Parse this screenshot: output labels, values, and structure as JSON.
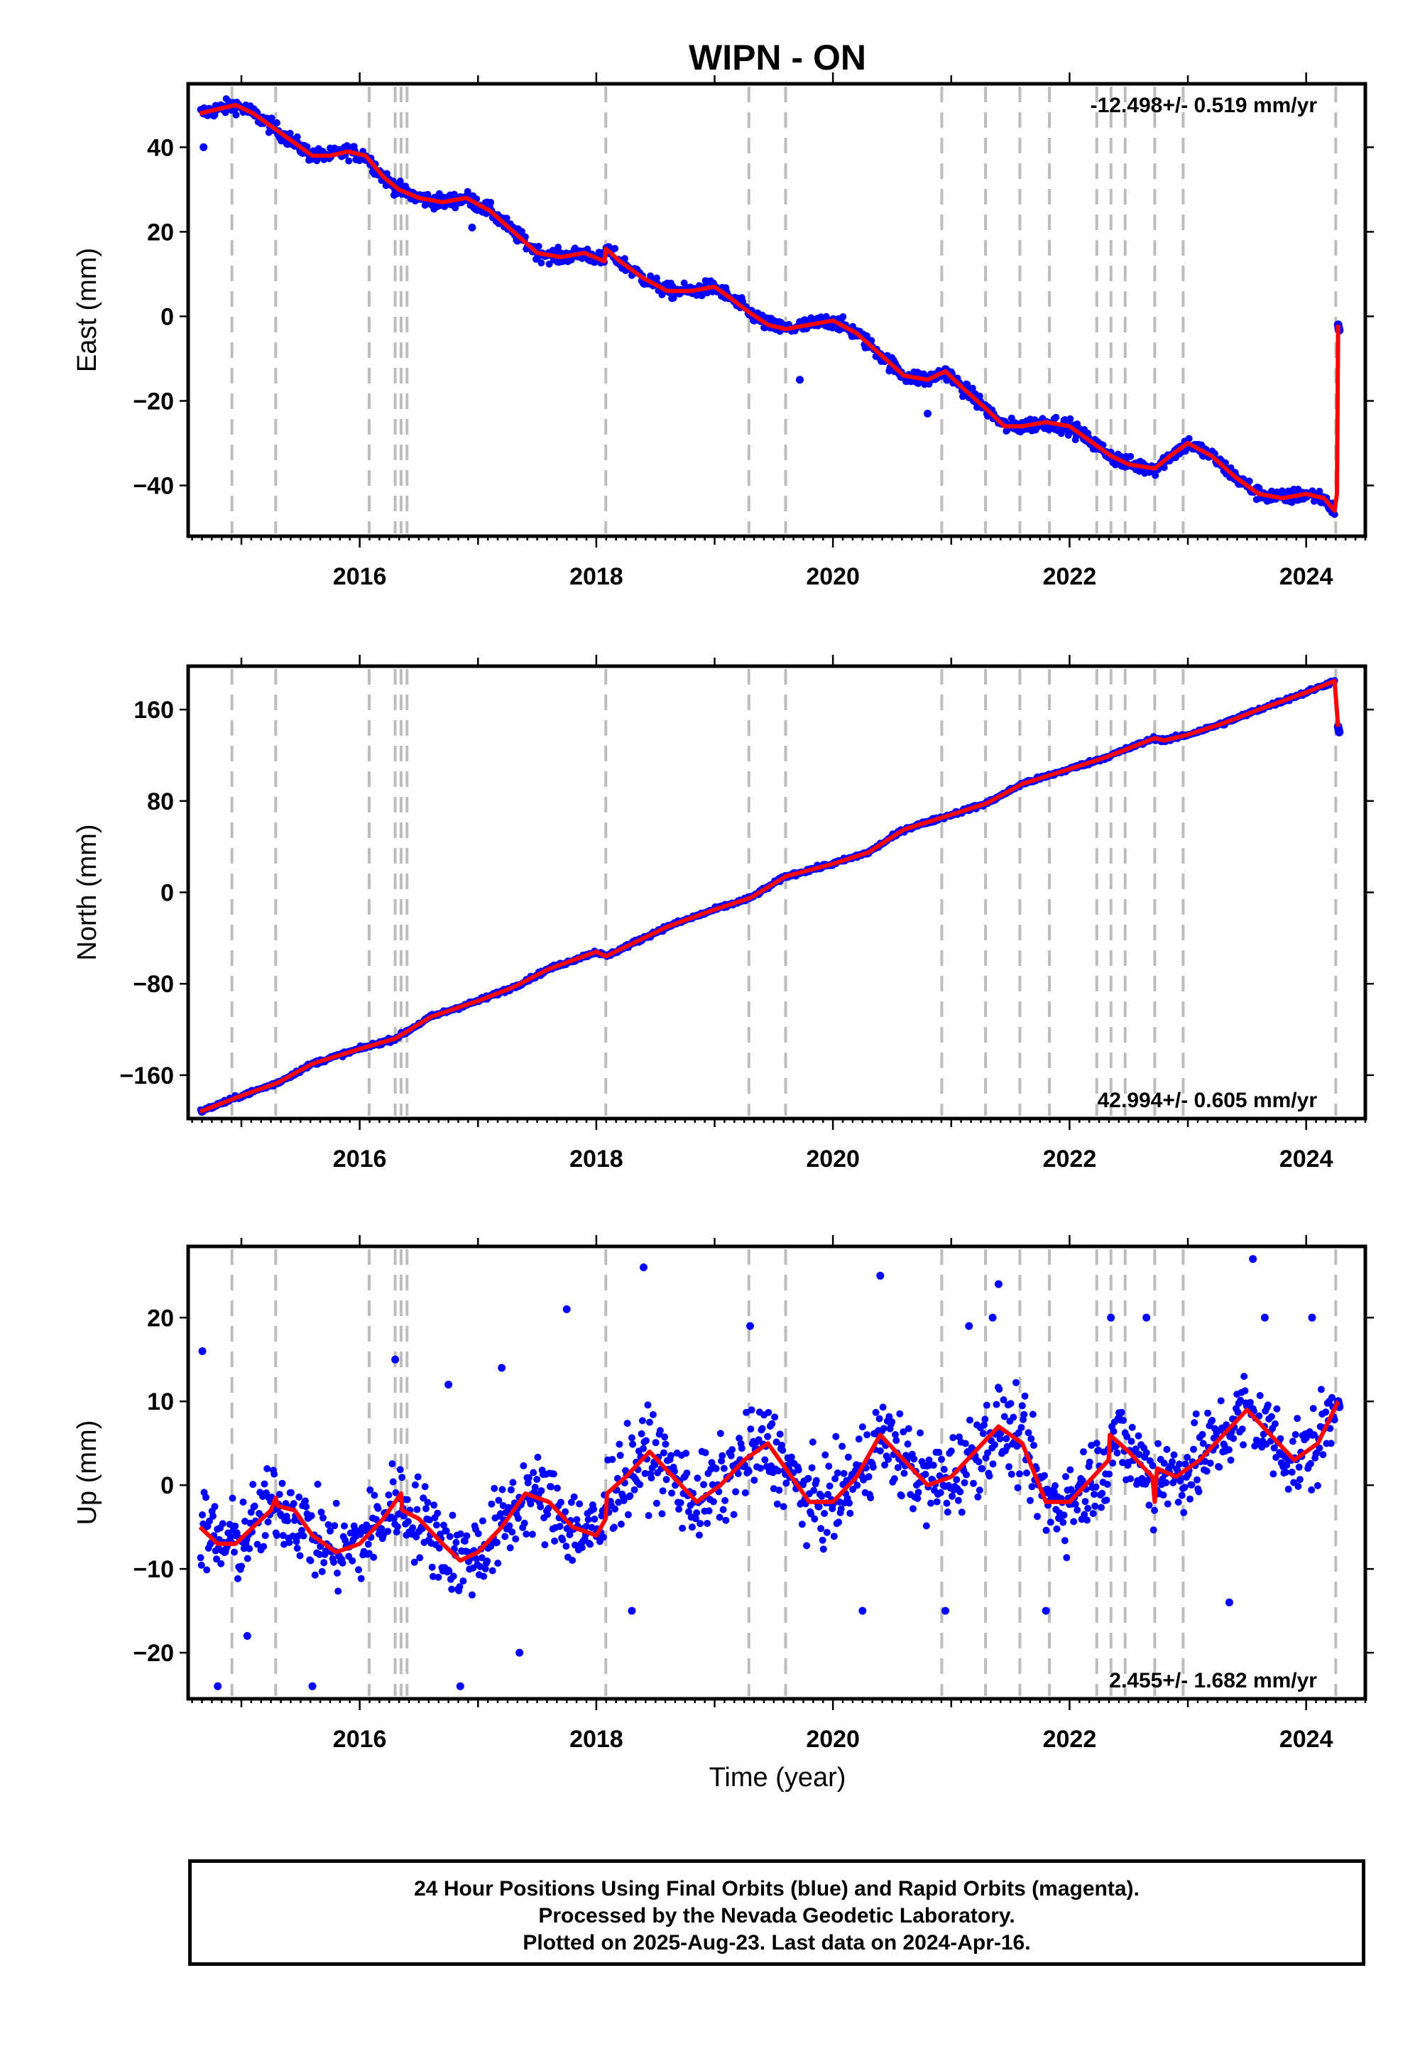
{
  "title": "WIPN - ON",
  "xlabel": "Time (year)",
  "footer": {
    "line1": "24 Hour Positions Using Final Orbits (blue) and Rapid Orbits (magenta).",
    "line2": "Processed by the Nevada Geodetic Laboratory.",
    "line3": "Plotted on 2025-Aug-23. Last data on 2024-Apr-16."
  },
  "colors": {
    "points": "#0000ff",
    "fit": "#ff0000",
    "events": "#bdbdbd"
  },
  "chart_data": [
    {
      "type": "scatter",
      "ylabel": "East (mm)",
      "rate_label": "-12.498+/- 0.519 mm/yr",
      "rate_label_position": "top-right",
      "xlim": [
        2014.55,
        2024.5
      ],
      "ylim": [
        -52,
        55
      ],
      "xticks": [
        2016,
        2018,
        2020,
        2022,
        2024
      ],
      "yticks": [
        40,
        20,
        0,
        -20,
        -40
      ],
      "ytick_labels": [
        "40",
        "20",
        "0",
        "−20",
        "−40"
      ],
      "event_lines": [
        2014.92,
        2015.29,
        2016.08,
        2016.3,
        2016.35,
        2016.4,
        2018.08,
        2019.29,
        2019.6,
        2020.92,
        2021.29,
        2021.58,
        2021.83,
        2022.23,
        2022.35,
        2022.47,
        2022.72,
        2022.96,
        2024.25
      ],
      "series": [
        {
          "kind": "fit",
          "x": [
            2014.65,
            2014.8,
            2014.95,
            2015.1,
            2015.3,
            2015.45,
            2015.6,
            2015.75,
            2015.9,
            2016.05,
            2016.2,
            2016.33,
            2016.5,
            2016.7,
            2016.9,
            2017.1,
            2017.3,
            2017.5,
            2017.7,
            2017.9,
            2018.07,
            2018.08,
            2018.2,
            2018.4,
            2018.6,
            2018.8,
            2019.0,
            2019.15,
            2019.29,
            2019.45,
            2019.6,
            2019.8,
            2020.0,
            2020.2,
            2020.4,
            2020.6,
            2020.8,
            2020.95,
            2021.1,
            2021.3,
            2021.45,
            2021.6,
            2021.8,
            2022.0,
            2022.2,
            2022.35,
            2022.5,
            2022.72,
            2022.85,
            2023.0,
            2023.2,
            2023.4,
            2023.6,
            2023.8,
            2024.0,
            2024.15,
            2024.24,
            2024.26,
            2024.27
          ],
          "y": [
            48,
            49,
            50,
            48,
            44,
            41,
            38,
            38,
            39,
            38,
            33,
            30,
            28,
            27,
            28,
            25,
            20,
            15,
            14,
            15,
            13,
            16,
            13,
            9,
            6,
            6,
            7,
            4,
            1,
            -2,
            -3,
            -2,
            -1,
            -4,
            -9,
            -14,
            -15,
            -13,
            -17,
            -22,
            -26,
            -26,
            -25,
            -26,
            -30,
            -33,
            -35,
            -36,
            -33,
            -30,
            -33,
            -38,
            -42,
            -43,
            -42,
            -43,
            -46,
            -42,
            -2
          ]
        },
        {
          "kind": "points",
          "scatter": 1.6,
          "outliers": [
            [
              2014.68,
              40
            ],
            [
              2016.95,
              21
            ],
            [
              2019.72,
              -15
            ],
            [
              2020.8,
              -23
            ]
          ]
        }
      ]
    },
    {
      "type": "scatter",
      "ylabel": "North (mm)",
      "rate_label": "42.994+/- 0.605 mm/yr",
      "rate_label_position": "bottom-right",
      "xlim": [
        2014.55,
        2024.5
      ],
      "ylim": [
        -198,
        198
      ],
      "xticks": [
        2016,
        2018,
        2020,
        2022,
        2024
      ],
      "yticks": [
        160,
        80,
        0,
        -80,
        -160
      ],
      "ytick_labels": [
        "160",
        "80",
        "0",
        "−80",
        "−160"
      ],
      "event_lines": [
        2014.92,
        2015.29,
        2016.08,
        2016.3,
        2016.35,
        2016.4,
        2018.08,
        2019.29,
        2019.6,
        2020.92,
        2021.29,
        2021.58,
        2021.83,
        2022.23,
        2022.35,
        2022.47,
        2022.72,
        2022.96,
        2024.25
      ],
      "series": [
        {
          "kind": "fit",
          "x": [
            2014.65,
            2015.0,
            2015.3,
            2015.6,
            2016.0,
            2016.3,
            2016.6,
            2017.0,
            2017.3,
            2017.6,
            2018.0,
            2018.08,
            2018.3,
            2018.6,
            2019.0,
            2019.3,
            2019.6,
            2020.0,
            2020.3,
            2020.6,
            2021.0,
            2021.3,
            2021.6,
            2022.0,
            2022.3,
            2022.72,
            2022.8,
            2023.0,
            2023.3,
            2023.6,
            2024.0,
            2024.24,
            2024.27
          ],
          "y": [
            -192,
            -178,
            -167,
            -150,
            -137,
            -128,
            -109,
            -95,
            -83,
            -67,
            -52,
            -56,
            -45,
            -30,
            -15,
            -5,
            14,
            25,
            35,
            55,
            68,
            78,
            95,
            108,
            118,
            135,
            133,
            138,
            148,
            160,
            175,
            185,
            145
          ]
        },
        {
          "kind": "points",
          "scatter": 1.6,
          "outliers": []
        }
      ]
    },
    {
      "type": "scatter",
      "ylabel": "Up (mm)",
      "rate_label": "2.455+/- 1.682 mm/yr",
      "rate_label_position": "bottom-right",
      "xlim": [
        2014.55,
        2024.5
      ],
      "ylim": [
        -25.5,
        28.5
      ],
      "xticks": [
        2016,
        2018,
        2020,
        2022,
        2024
      ],
      "yticks": [
        20,
        10,
        0,
        -10,
        -20
      ],
      "ytick_labels": [
        "20",
        "10",
        "0",
        "−10",
        "−20"
      ],
      "event_lines": [
        2014.92,
        2015.29,
        2016.08,
        2016.3,
        2016.35,
        2016.4,
        2018.08,
        2019.29,
        2019.6,
        2020.92,
        2021.29,
        2021.58,
        2021.83,
        2022.23,
        2022.35,
        2022.47,
        2022.72,
        2022.96,
        2024.25
      ],
      "series": [
        {
          "kind": "fit",
          "x": [
            2014.65,
            2014.8,
            2014.95,
            2015.1,
            2015.25,
            2015.29,
            2015.31,
            2015.45,
            2015.6,
            2015.8,
            2016.0,
            2016.2,
            2016.35,
            2016.36,
            2016.5,
            2016.7,
            2016.85,
            2017.0,
            2017.2,
            2017.4,
            2017.6,
            2017.8,
            2018.0,
            2018.08,
            2018.09,
            2018.25,
            2018.45,
            2018.65,
            2018.85,
            2019.05,
            2019.25,
            2019.45,
            2019.6,
            2019.8,
            2020.0,
            2020.2,
            2020.4,
            2020.6,
            2020.8,
            2021.0,
            2021.2,
            2021.4,
            2021.6,
            2021.8,
            2022.0,
            2022.2,
            2022.33,
            2022.34,
            2022.5,
            2022.7,
            2022.72,
            2022.74,
            2022.9,
            2023.1,
            2023.3,
            2023.5,
            2023.7,
            2023.9,
            2024.1,
            2024.27
          ],
          "y": [
            -5,
            -7,
            -7,
            -5,
            -3,
            -1.5,
            -2.5,
            -3,
            -6,
            -8,
            -7,
            -4,
            -1,
            -3,
            -4,
            -7,
            -9,
            -8,
            -5,
            -1,
            -2,
            -5,
            -6,
            -4,
            -1,
            1,
            4,
            1,
            -2,
            0,
            3,
            5,
            2,
            -2,
            -2,
            1,
            6,
            3,
            0,
            1,
            4,
            7,
            5,
            -2,
            -2,
            1,
            3,
            6,
            4,
            1,
            -2,
            2,
            1,
            3,
            6,
            9,
            6,
            3,
            5,
            10
          ]
        },
        {
          "kind": "points",
          "scatter": 4.6,
          "outliers": [
            [
              2014.67,
              16
            ],
            [
              2014.8,
              -24
            ],
            [
              2015.05,
              -18
            ],
            [
              2015.6,
              -24
            ],
            [
              2016.3,
              15
            ],
            [
              2016.75,
              12
            ],
            [
              2016.85,
              -24
            ],
            [
              2017.2,
              14
            ],
            [
              2017.35,
              -20
            ],
            [
              2017.75,
              21
            ],
            [
              2018.4,
              26
            ],
            [
              2018.3,
              -15
            ],
            [
              2019.3,
              19
            ],
            [
              2020.4,
              25
            ],
            [
              2020.25,
              -15
            ],
            [
              2020.95,
              -15
            ],
            [
              2021.15,
              19
            ],
            [
              2021.4,
              24
            ],
            [
              2021.35,
              20
            ],
            [
              2021.8,
              -15
            ],
            [
              2022.35,
              20
            ],
            [
              2022.65,
              20
            ],
            [
              2023.55,
              27
            ],
            [
              2023.65,
              20
            ],
            [
              2023.35,
              -14
            ],
            [
              2024.05,
              20
            ]
          ]
        }
      ]
    }
  ]
}
